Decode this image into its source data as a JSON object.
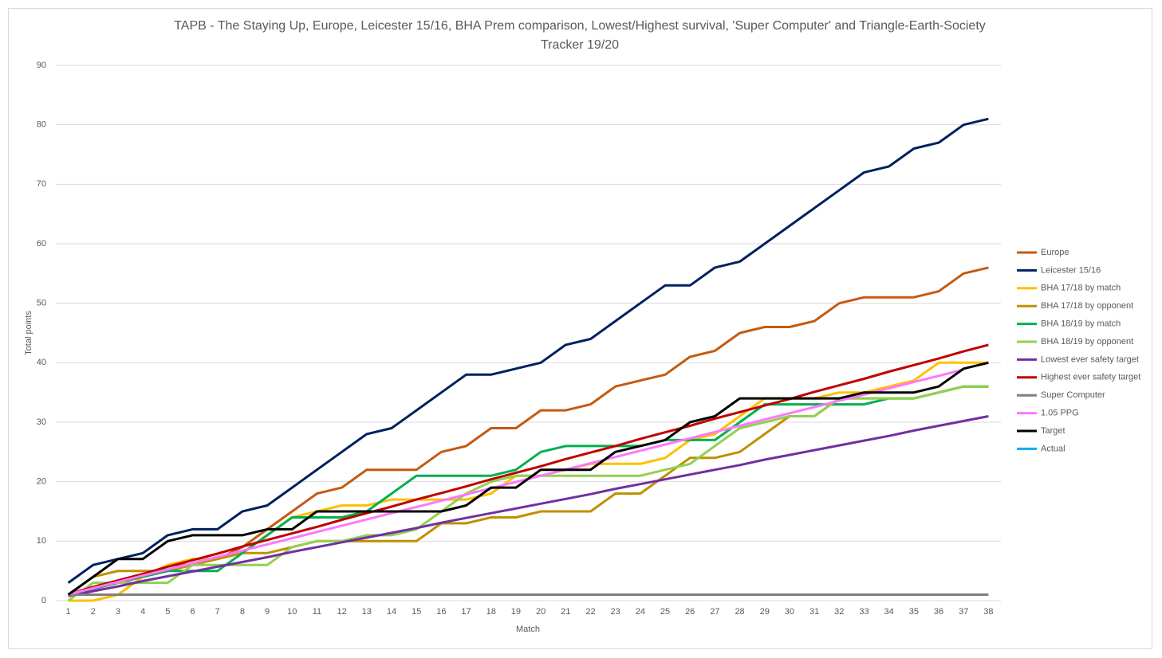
{
  "chart_data": {
    "type": "line",
    "title": "TAPB - The Staying Up, Europe, Leicester 15/16, BHA Prem comparison, Lowest/Highest survival, 'Super Computer' and Triangle-Earth-Society",
    "subtitle": "Tracker 19/20",
    "x_label": "Match",
    "y_label": "Total points",
    "categories": [
      "1",
      "2",
      "3",
      "4",
      "5",
      "6",
      "7",
      "8",
      "9",
      "10",
      "11",
      "12",
      "13",
      "14",
      "15",
      "16",
      "17",
      "18",
      "19",
      "20",
      "21",
      "22",
      "23",
      "24",
      "25",
      "26",
      "27",
      "28",
      "29",
      "30",
      "31",
      "32",
      "33",
      "34",
      "35",
      "36",
      "37",
      "38"
    ],
    "ylim": [
      0,
      90
    ],
    "yticks": [
      0,
      10,
      20,
      30,
      40,
      50,
      60,
      70,
      80,
      90
    ],
    "grid": true,
    "legend": "right",
    "series": [
      {
        "name": "Europe",
        "color": "#c55a11",
        "values": [
          1,
          2,
          3,
          4,
          5,
          7,
          7,
          9,
          12,
          15,
          18,
          19,
          22,
          22,
          22,
          25,
          26,
          29,
          29,
          32,
          32,
          33,
          36,
          37,
          38,
          41,
          42,
          45,
          46,
          46,
          47,
          50,
          51,
          51,
          51,
          52,
          55,
          56
        ]
      },
      {
        "name": "Leicester 15/16",
        "color": "#002060",
        "values": [
          3,
          6,
          7,
          8,
          11,
          12,
          12,
          15,
          16,
          19,
          22,
          25,
          28,
          29,
          32,
          35,
          38,
          38,
          39,
          40,
          43,
          44,
          47,
          50,
          53,
          53,
          56,
          57,
          60,
          63,
          66,
          69,
          72,
          73,
          76,
          77,
          80,
          81
        ]
      },
      {
        "name": "BHA 17/18 by match",
        "color": "#ffc000",
        "values": [
          0,
          0,
          1,
          4,
          6,
          7,
          7,
          8,
          11,
          14,
          15,
          16,
          16,
          17,
          17,
          17,
          17,
          18,
          21,
          21,
          22,
          23,
          23,
          23,
          24,
          27,
          28,
          31,
          34,
          34,
          34,
          35,
          35,
          36,
          37,
          40,
          40,
          40
        ]
      },
      {
        "name": "BHA 17/18 by opponent",
        "color": "#bf9000",
        "values": [
          1,
          4,
          5,
          5,
          5,
          6,
          7,
          8,
          8,
          9,
          10,
          10,
          10,
          10,
          10,
          13,
          13,
          14,
          14,
          15,
          15,
          15,
          18,
          18,
          21,
          24,
          24,
          25,
          28,
          31,
          31,
          34,
          34,
          34,
          34,
          35,
          36,
          36
        ]
      },
      {
        "name": "BHA 18/19 by match",
        "color": "#00b050",
        "values": [
          1,
          2,
          3,
          4,
          5,
          5,
          5,
          8,
          11,
          14,
          14,
          14,
          15,
          18,
          21,
          21,
          21,
          21,
          22,
          25,
          26,
          26,
          26,
          26,
          27,
          27,
          27,
          30,
          33,
          33,
          33,
          33,
          33,
          34,
          34,
          35,
          36,
          36
        ]
      },
      {
        "name": "BHA 18/19 by opponent",
        "color": "#92d050",
        "values": [
          0,
          3,
          3,
          3,
          3,
          6,
          6,
          6,
          6,
          9,
          10,
          10,
          11,
          11,
          12,
          15,
          18,
          20,
          21,
          21,
          21,
          21,
          21,
          21,
          22,
          23,
          26,
          29,
          30,
          31,
          31,
          34,
          34,
          34,
          34,
          35,
          36,
          36
        ]
      },
      {
        "name": "Lowest ever safety target",
        "color": "#7030a0",
        "values": [
          0.8,
          1.6,
          2.4,
          3.3,
          4.1,
          4.9,
          5.7,
          6.5,
          7.3,
          8.2,
          9.0,
          9.8,
          10.6,
          11.4,
          12.2,
          13.1,
          13.9,
          14.7,
          15.5,
          16.3,
          17.1,
          17.9,
          18.8,
          19.6,
          20.4,
          21.2,
          22.0,
          22.8,
          23.7,
          24.5,
          25.3,
          26.1,
          26.9,
          27.7,
          28.6,
          29.4,
          30.2,
          31.0
        ]
      },
      {
        "name": "Highest ever safety target",
        "color": "#c00000",
        "values": [
          1.1,
          2.3,
          3.4,
          4.5,
          5.7,
          6.8,
          7.9,
          9.1,
          10.2,
          11.3,
          12.4,
          13.6,
          14.7,
          15.8,
          17.0,
          18.1,
          19.2,
          20.4,
          21.5,
          22.6,
          23.8,
          24.9,
          26.0,
          27.2,
          28.3,
          29.4,
          30.6,
          31.7,
          32.8,
          33.9,
          35.1,
          36.2,
          37.3,
          38.5,
          39.6,
          40.7,
          41.9,
          43.0
        ]
      },
      {
        "name": "Super Computer",
        "color": "#7f7f7f",
        "values": [
          1,
          1,
          1,
          1,
          1,
          1,
          1,
          1,
          1,
          1,
          1,
          1,
          1,
          1,
          1,
          1,
          1,
          1,
          1,
          1,
          1,
          1,
          1,
          1,
          1,
          1,
          1,
          1,
          1,
          1,
          1,
          1,
          1,
          1,
          1,
          1,
          1,
          1
        ]
      },
      {
        "name": "1.05 PPG",
        "color": "#ff77ff",
        "values": [
          1.05,
          2.1,
          3.15,
          4.2,
          5.25,
          6.3,
          7.35,
          8.4,
          9.45,
          10.5,
          11.55,
          12.6,
          13.65,
          14.7,
          15.75,
          16.8,
          17.85,
          18.9,
          19.95,
          21,
          22.05,
          23.1,
          24.15,
          25.2,
          26.25,
          27.3,
          28.35,
          29.4,
          30.45,
          31.5,
          32.55,
          33.6,
          34.65,
          35.7,
          36.75,
          37.8,
          38.85,
          null
        ]
      },
      {
        "name": "Target",
        "color": "#000000",
        "values": [
          1,
          4,
          7,
          7,
          10,
          11,
          11,
          11,
          12,
          12,
          15,
          15,
          15,
          15,
          15,
          15,
          16,
          19,
          19,
          22,
          22,
          22,
          25,
          26,
          27,
          30,
          31,
          34,
          34,
          34,
          34,
          34,
          35,
          35,
          35,
          36,
          39,
          40
        ]
      },
      {
        "name": "Actual",
        "color": "#00b0f0",
        "values": [
          null,
          null,
          null,
          null,
          null,
          null,
          null,
          null,
          null,
          null,
          null,
          null,
          null,
          null,
          null,
          null,
          null,
          null,
          null,
          null,
          null,
          null,
          null,
          null,
          null,
          null,
          null,
          null,
          null,
          null,
          null,
          null,
          null,
          null,
          null,
          null,
          null,
          null
        ]
      }
    ]
  }
}
